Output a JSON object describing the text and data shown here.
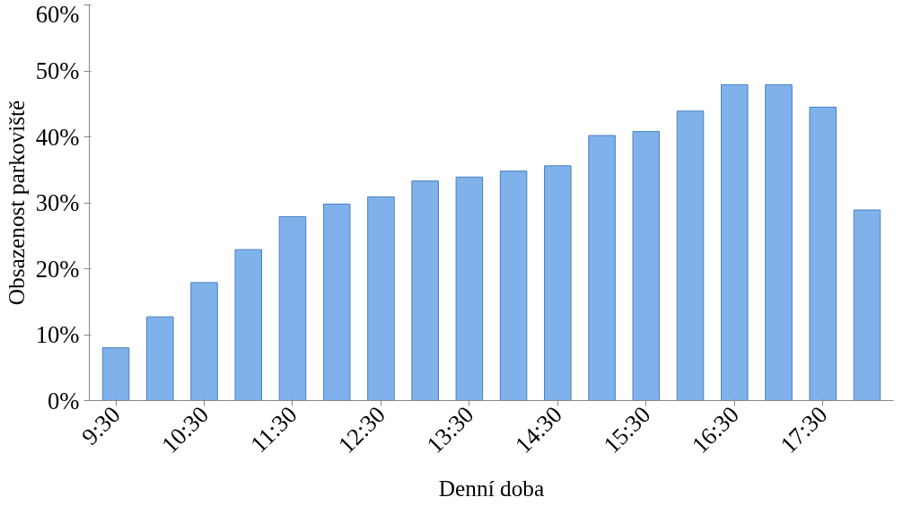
{
  "chart_data": {
    "type": "bar",
    "xlabel": "Denní doba",
    "ylabel": "Obsazenost parkoviště",
    "categories": [
      "9:30",
      null,
      "10:30",
      null,
      "11:30",
      null,
      "12:30",
      null,
      "13:30",
      null,
      "14:30",
      null,
      "15:30",
      null,
      "16:30",
      null,
      "17:30",
      null
    ],
    "values": [
      8.0,
      12.7,
      17.9,
      22.9,
      27.9,
      29.8,
      30.9,
      33.3,
      33.9,
      34.8,
      35.6,
      40.2,
      40.8,
      43.9,
      47.9,
      47.9,
      44.5,
      28.9
    ],
    "color": "#7fb2ea",
    "ylim": [
      0,
      60
    ],
    "yticks": [
      {
        "value": 0,
        "label": "0%"
      },
      {
        "value": 10,
        "label": "10%"
      },
      {
        "value": 20,
        "label": "20%"
      },
      {
        "value": 30,
        "label": "30%"
      },
      {
        "value": 40,
        "label": "40%"
      },
      {
        "value": 50,
        "label": "50%"
      },
      {
        "value": 60,
        "label": "60%"
      }
    ],
    "grid": false
  }
}
